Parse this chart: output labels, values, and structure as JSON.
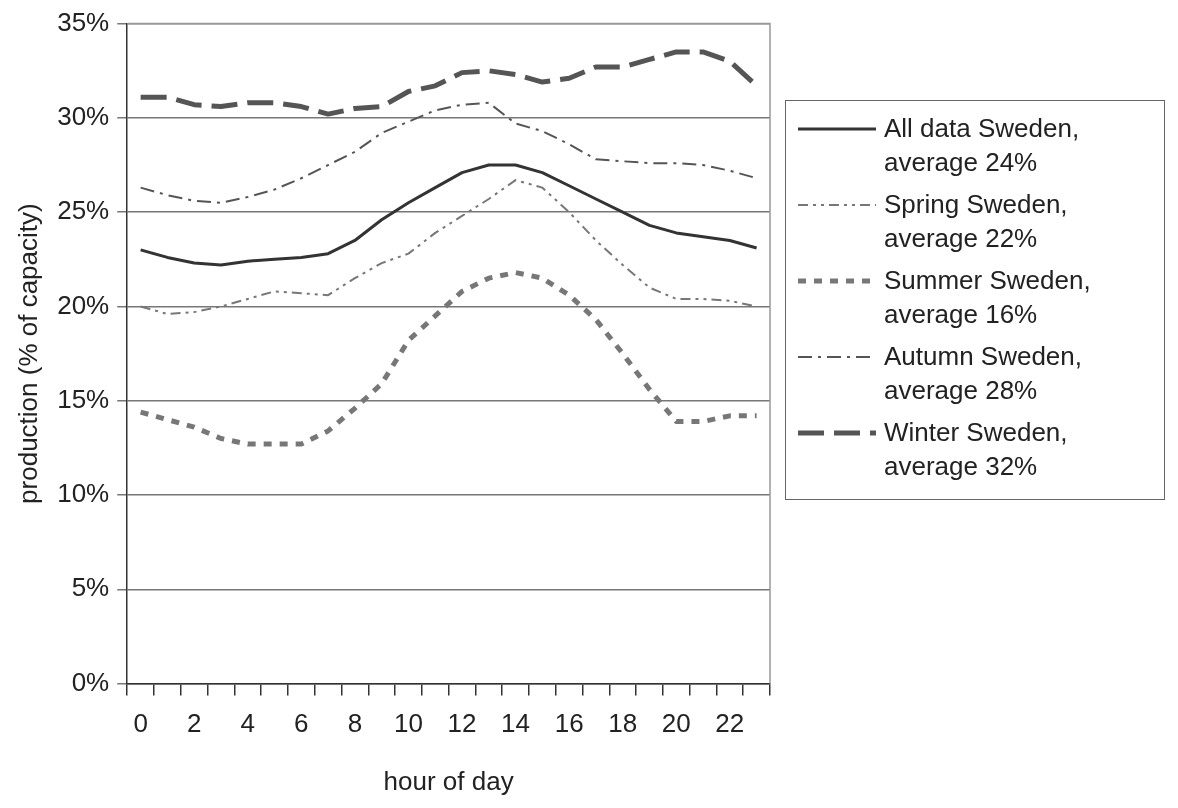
{
  "chart_data": {
    "type": "line",
    "xlabel": "hour of day",
    "ylabel": "production (% of capacity)",
    "categories": [
      "0",
      null,
      "2",
      null,
      "4",
      null,
      "6",
      null,
      "8",
      null,
      "10",
      null,
      "12",
      null,
      "14",
      null,
      "16",
      null,
      "18",
      null,
      "20",
      null,
      "22",
      null
    ],
    "ylim": [
      0,
      35
    ],
    "yticks": [
      {
        "value": 0,
        "label": "0%"
      },
      {
        "value": 5,
        "label": "5%"
      },
      {
        "value": 10,
        "label": "10%"
      },
      {
        "value": 15,
        "label": "15%"
      },
      {
        "value": 20,
        "label": "20%"
      },
      {
        "value": 25,
        "label": "25%"
      },
      {
        "value": 30,
        "label": "30%"
      },
      {
        "value": 35,
        "label": "35%"
      }
    ],
    "grid": "y",
    "legend": "right",
    "marker": "none",
    "series": [
      {
        "name": "All data Sweden, average 24%",
        "color": "#333333",
        "line_style": "solid",
        "values": [
          23.0,
          22.6,
          22.3,
          22.2,
          22.4,
          22.5,
          22.6,
          22.8,
          23.5,
          24.6,
          25.5,
          26.3,
          27.1,
          27.5,
          27.5,
          27.1,
          26.4,
          25.7,
          25.0,
          24.3,
          23.9,
          23.7,
          23.5,
          23.1
        ]
      },
      {
        "name": "Spring Sweden, average 22%",
        "color": "#777777",
        "line_style": "dashdotdot",
        "values": [
          20.0,
          19.6,
          19.7,
          20.0,
          20.4,
          20.8,
          20.7,
          20.6,
          21.5,
          22.3,
          22.8,
          23.9,
          24.8,
          25.7,
          26.7,
          26.3,
          25.0,
          23.5,
          22.2,
          21.0,
          20.4,
          20.4,
          20.3,
          20.0
        ]
      },
      {
        "name": "Summer Sweden, average 16%",
        "color": "#777777",
        "line_style": "dotted",
        "values": [
          14.4,
          14.0,
          13.6,
          13.0,
          12.7,
          12.7,
          12.7,
          13.4,
          14.6,
          15.9,
          18.2,
          19.5,
          20.8,
          21.5,
          21.8,
          21.5,
          20.6,
          19.3,
          17.5,
          15.6,
          13.9,
          13.9,
          14.2,
          14.2
        ]
      },
      {
        "name": "Autumn Sweden, average 28%",
        "color": "#555555",
        "line_style": "dashdot",
        "values": [
          26.3,
          25.9,
          25.6,
          25.5,
          25.8,
          26.2,
          26.8,
          27.5,
          28.2,
          29.2,
          29.8,
          30.4,
          30.7,
          30.8,
          29.7,
          29.3,
          28.6,
          27.8,
          27.7,
          27.6,
          27.6,
          27.5,
          27.2,
          26.8
        ]
      },
      {
        "name": "Winter Sweden, average 32%",
        "color": "#555555",
        "line_style": "dashed",
        "values": [
          31.1,
          31.1,
          30.7,
          30.6,
          30.8,
          30.8,
          30.6,
          30.2,
          30.5,
          30.6,
          31.4,
          31.7,
          32.4,
          32.5,
          32.3,
          31.9,
          32.1,
          32.7,
          32.7,
          33.1,
          33.5,
          33.5,
          33.0,
          31.7
        ]
      }
    ]
  }
}
